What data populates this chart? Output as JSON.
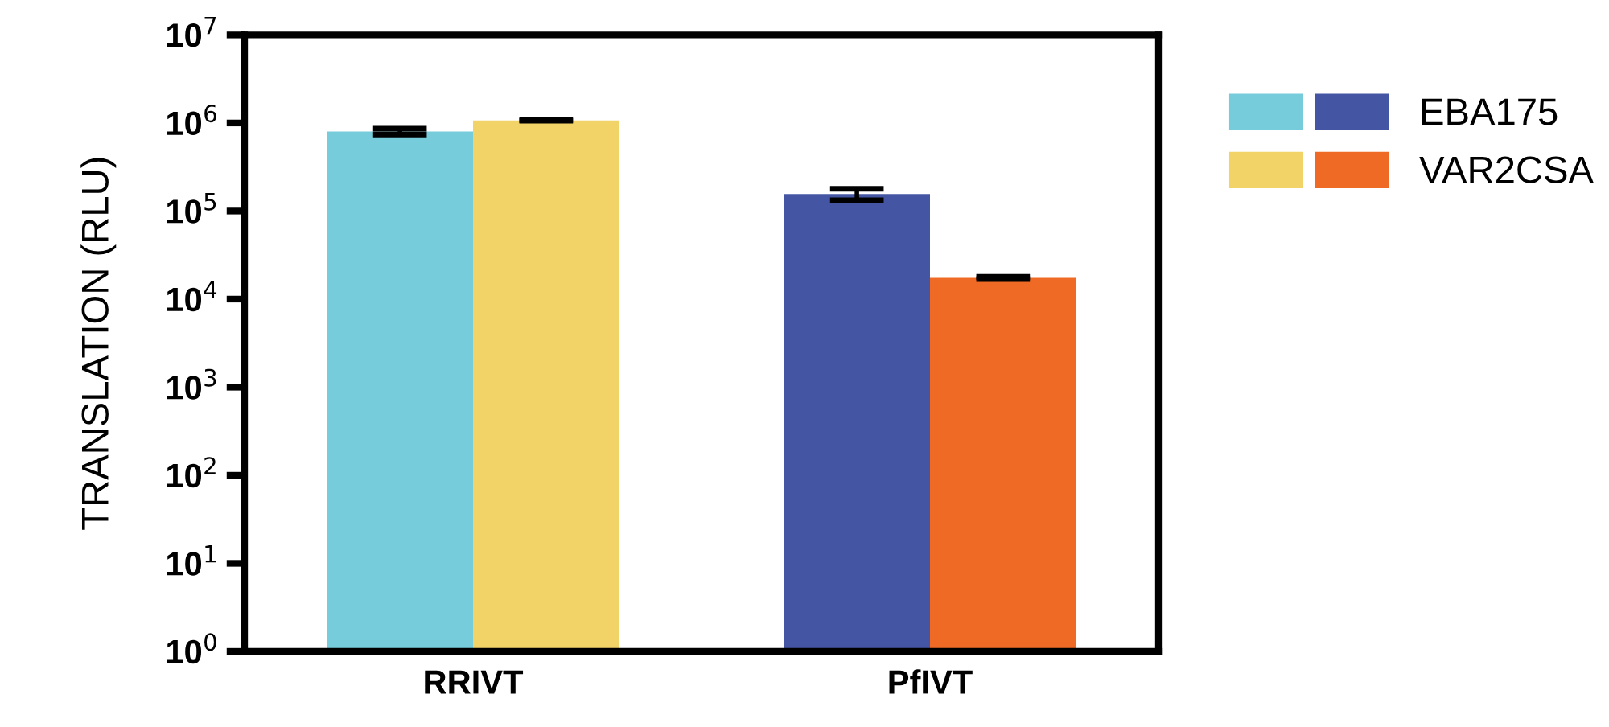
{
  "chart_data": {
    "type": "bar",
    "ylabel": "TRANSLATION (RLU)",
    "categories": [
      "RRIVT",
      "PfIVT"
    ],
    "series": [
      {
        "name": "EBA175",
        "colors": [
          "#76ccdb",
          "#4456a3"
        ],
        "values": [
          800000,
          156000
        ],
        "errors": [
          60000,
          23000
        ]
      },
      {
        "name": "VAR2CSA",
        "colors": [
          "#f2d368",
          "#ef6b25"
        ],
        "values": [
          1070000,
          17400
        ],
        "errors": [
          10000,
          500
        ]
      }
    ],
    "log": "y",
    "ylim": [
      1,
      10000000
    ],
    "yticks": [
      {
        "value": 1,
        "label": "10$^{0}$"
      },
      {
        "value": 10,
        "label": "10$^{1}$"
      },
      {
        "value": 100,
        "label": "10$^{2}$"
      },
      {
        "value": 1000,
        "label": "10$^{3}$"
      },
      {
        "value": 10000,
        "label": "10$^{4}$"
      },
      {
        "value": 100000,
        "label": "10$^{5}$"
      },
      {
        "value": 1000000,
        "label": "10$^{6}$"
      },
      {
        "value": 10000000,
        "label": "10$^{7}$"
      }
    ],
    "grid": false,
    "legend": "top right"
  }
}
